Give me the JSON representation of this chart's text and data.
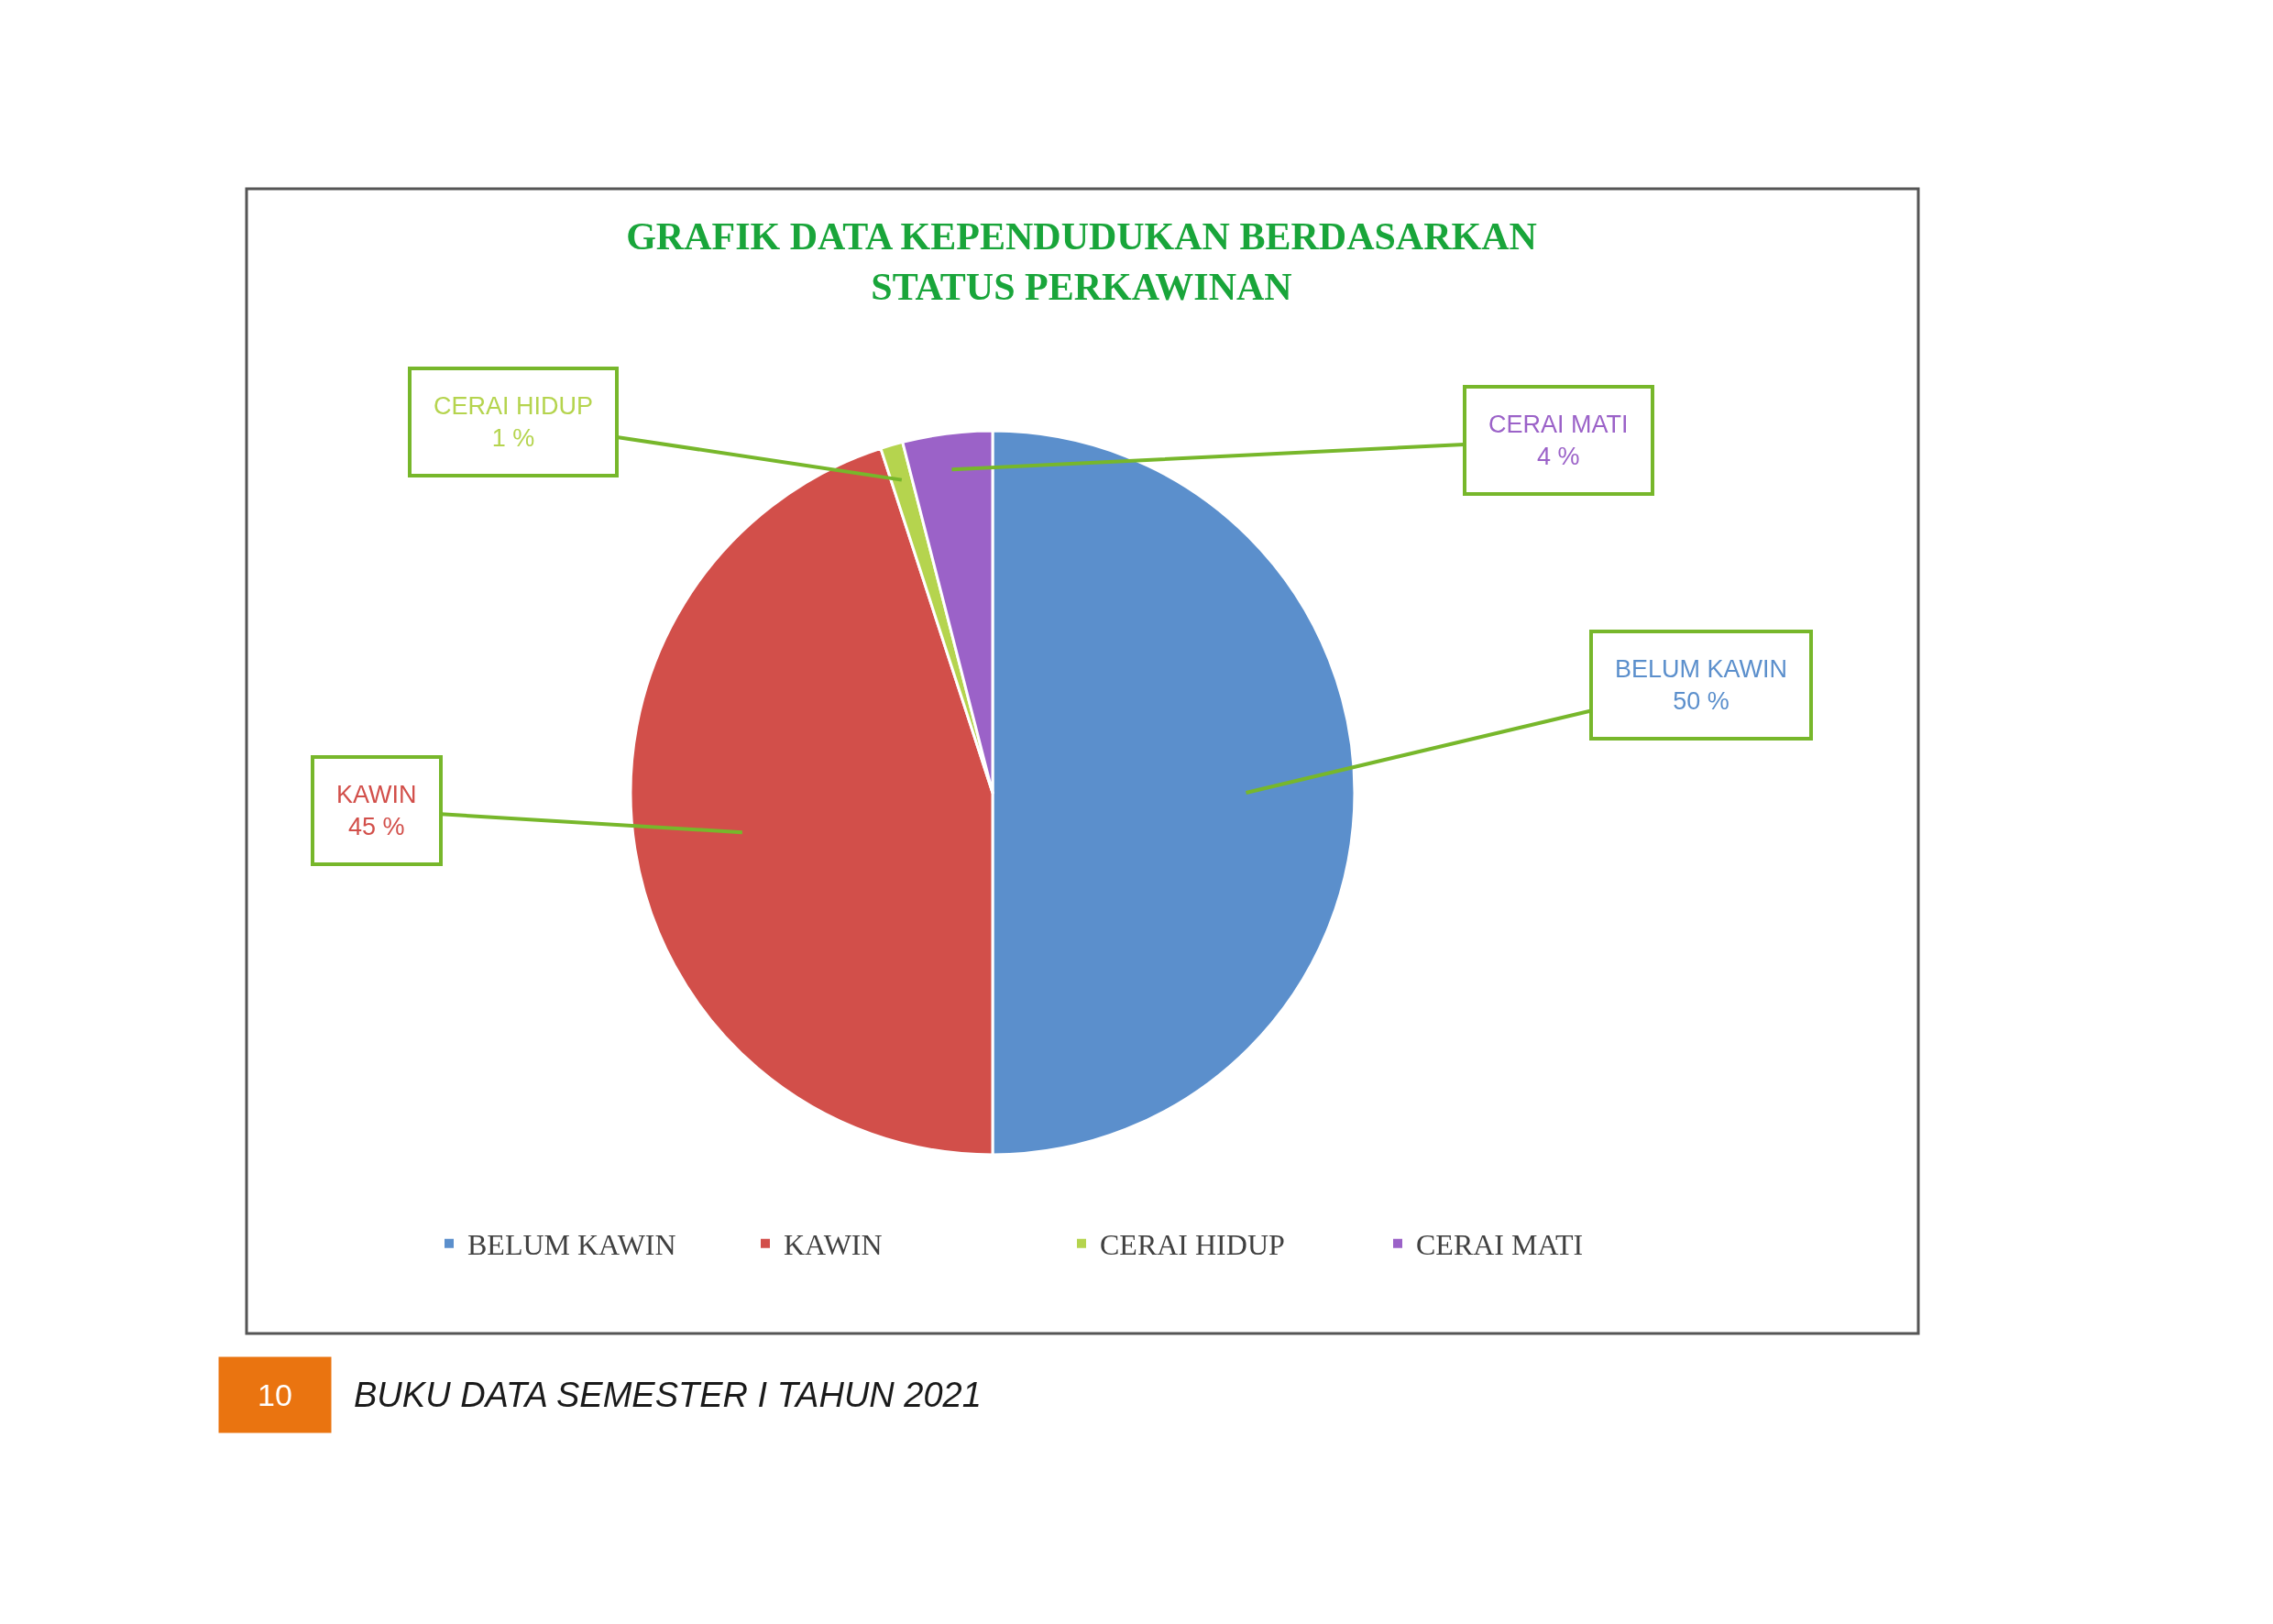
{
  "chart_data": {
    "type": "pie",
    "title": "GRAFIK DATA KEPENDUDUKAN BERDASARKAN STATUS PERKAWINAN",
    "categories": [
      "BELUM KAWIN",
      "KAWIN",
      "CERAI HIDUP",
      "CERAI MATI"
    ],
    "values": [
      50,
      45,
      1,
      4
    ],
    "colors": [
      "#5b8fcc",
      "#d24f4a",
      "#b5d44e",
      "#9b62c8"
    ],
    "value_labels": [
      "50 %",
      "45 %",
      "1 %",
      "4 %"
    ],
    "legend": "bottom",
    "annotations": [
      "10",
      "BUKU DATA SEMESTER I TAHUN 2021"
    ]
  }
}
